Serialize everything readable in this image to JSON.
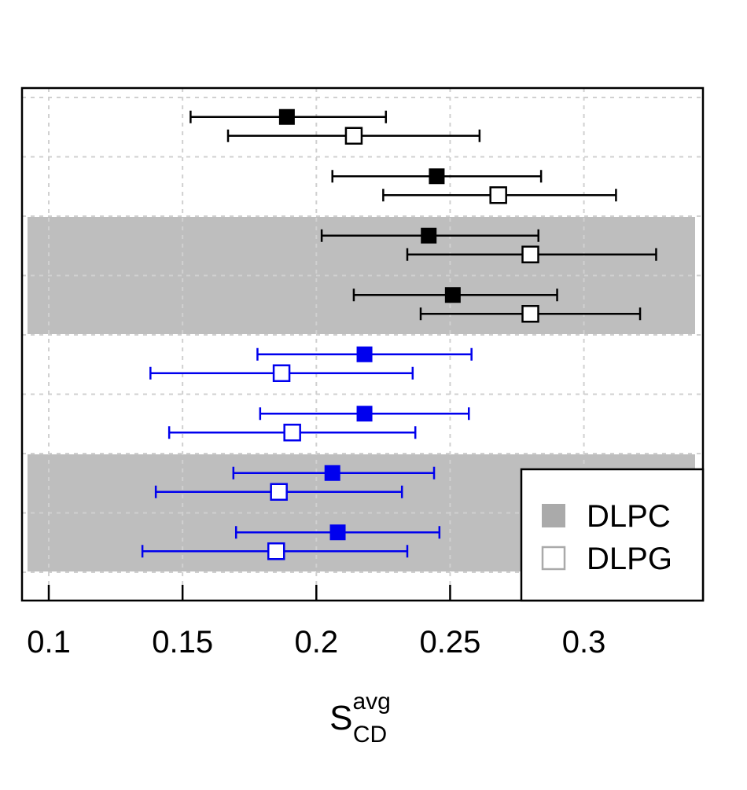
{
  "chart_data": {
    "type": "scatter",
    "subtype": "forest-plot-with-error-bars",
    "title": "",
    "xlabel": {
      "base": "S",
      "subscript": "CD",
      "superscript": "avg"
    },
    "ylabel": "",
    "xlim": [
      0.09,
      0.3445
    ],
    "xticks": [
      0.1,
      0.15,
      0.2,
      0.25,
      0.3
    ],
    "xtick_labels": [
      "0.1",
      "0.15",
      "0.2",
      "0.25",
      "0.3"
    ],
    "grid": true,
    "row_count": 8,
    "shaded_rows": [
      3,
      4,
      7,
      8
    ],
    "legend": {
      "position": "bottom-right",
      "entries": [
        {
          "label": "DLPC",
          "marker": "filled-square",
          "color": "#aaaaaa"
        },
        {
          "label": "DLPG",
          "marker": "open-square",
          "color": "#aaaaaa"
        }
      ]
    },
    "series": [
      {
        "name": "DLPC",
        "marker": "filled-square",
        "points": [
          {
            "row": 1,
            "x": 0.189,
            "low": 0.153,
            "high": 0.226,
            "color": "#000000"
          },
          {
            "row": 2,
            "x": 0.245,
            "low": 0.206,
            "high": 0.284,
            "color": "#000000"
          },
          {
            "row": 3,
            "x": 0.242,
            "low": 0.202,
            "high": 0.283,
            "color": "#000000"
          },
          {
            "row": 4,
            "x": 0.251,
            "low": 0.214,
            "high": 0.29,
            "color": "#000000"
          },
          {
            "row": 5,
            "x": 0.218,
            "low": 0.178,
            "high": 0.258,
            "color": "#0000ee"
          },
          {
            "row": 6,
            "x": 0.218,
            "low": 0.179,
            "high": 0.257,
            "color": "#0000ee"
          },
          {
            "row": 7,
            "x": 0.206,
            "low": 0.169,
            "high": 0.244,
            "color": "#0000ee"
          },
          {
            "row": 8,
            "x": 0.208,
            "low": 0.17,
            "high": 0.246,
            "color": "#0000ee"
          }
        ]
      },
      {
        "name": "DLPG",
        "marker": "open-square",
        "points": [
          {
            "row": 1,
            "x": 0.214,
            "low": 0.167,
            "high": 0.261,
            "color": "#000000"
          },
          {
            "row": 2,
            "x": 0.268,
            "low": 0.225,
            "high": 0.312,
            "color": "#000000"
          },
          {
            "row": 3,
            "x": 0.28,
            "low": 0.234,
            "high": 0.327,
            "color": "#000000"
          },
          {
            "row": 4,
            "x": 0.28,
            "low": 0.239,
            "high": 0.321,
            "color": "#000000"
          },
          {
            "row": 5,
            "x": 0.187,
            "low": 0.138,
            "high": 0.236,
            "color": "#0000ee"
          },
          {
            "row": 6,
            "x": 0.191,
            "low": 0.145,
            "high": 0.237,
            "color": "#0000ee"
          },
          {
            "row": 7,
            "x": 0.186,
            "low": 0.14,
            "high": 0.232,
            "color": "#0000ee"
          },
          {
            "row": 8,
            "x": 0.185,
            "low": 0.135,
            "high": 0.234,
            "color": "#0000ee"
          }
        ]
      }
    ]
  }
}
